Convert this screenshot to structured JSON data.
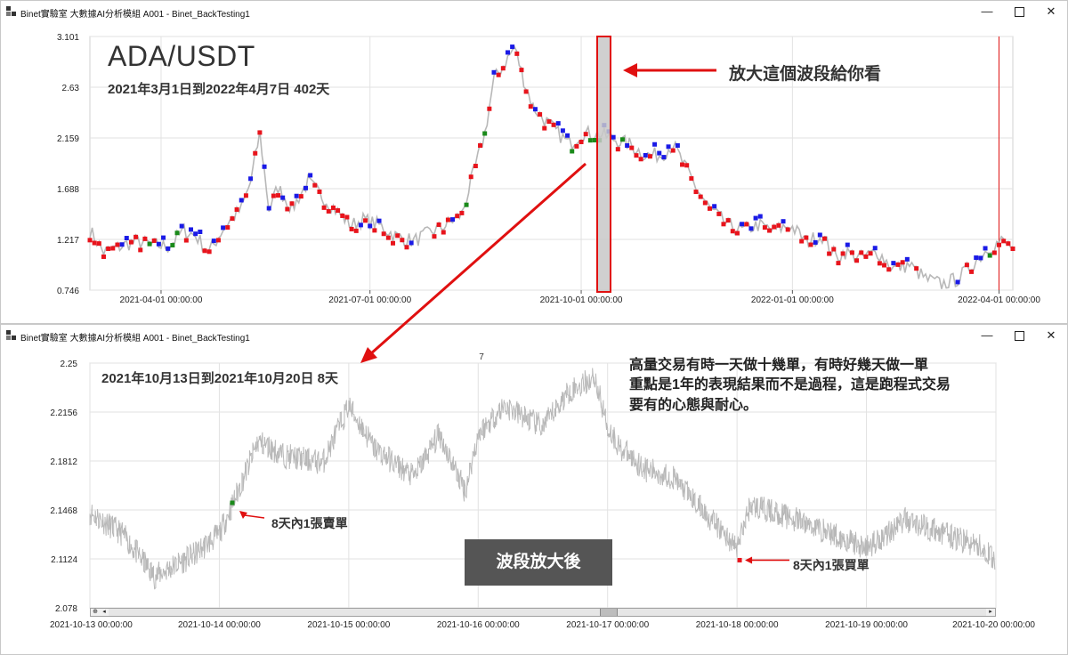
{
  "top_window": {
    "title": "Binet實驗室  大數據AI分析模組 A001 - Binet_BackTesting1",
    "controls": {
      "minimize": "—",
      "close": "✕"
    }
  },
  "bottom_window": {
    "title": "Binet實驗室  大數據AI分析模組 A001 - Binet_BackTesting1",
    "controls": {
      "minimize": "—",
      "close": "✕"
    }
  },
  "annotations": {
    "pair": "ADA/USDT",
    "top_range": "2021年3月1日到2022年4月7日  402天",
    "zoom_note": "放大這個波段給你看",
    "bottom_range": "2021年10月13日到2021年10月20日  8天",
    "note_lines": [
      "高量交易有時一天做十幾單，有時好幾天做一單",
      "重點是1年的表現結果而不是過程，這是跑程式交易",
      "要有的心態與耐心。"
    ],
    "sell_label": "8天內1張賣單",
    "buy_label": "8天內1張買單",
    "zoomed_label": "波段放大後"
  },
  "colors": {
    "price_line": "#b8b8b8",
    "buy_marker": "#e8141c",
    "sell_marker": "#1a1ae6",
    "close_marker": "#1a8a1a",
    "arrow": "#e01010",
    "grid": "#e2e2e2"
  },
  "scrollbar": {
    "left_arrow": "◂",
    "right_arrow": "▸",
    "home_glyph": "⊕"
  },
  "chart_data": [
    {
      "type": "line",
      "title": "",
      "xlabel": "",
      "ylabel": "",
      "y_ticks": [
        "3.101",
        "2.63",
        "2.159",
        "1.688",
        "1.217",
        "0.746"
      ],
      "ylim": [
        0.746,
        3.101
      ],
      "x_ticks": [
        "2021-04-01 00:00:00",
        "2021-07-01 00:00:00",
        "2021-10-01 00:00:00",
        "2022-01-01 00:00:00",
        "2022-04-01 00:00:00"
      ],
      "grid": true,
      "series": [
        {
          "x": [
            "2021-03-01",
            "2021-03-07",
            "2021-03-14",
            "2021-03-21",
            "2021-03-28",
            "2021-04-04",
            "2021-04-11",
            "2021-04-16",
            "2021-04-22",
            "2021-04-29",
            "2021-05-06",
            "2021-05-10",
            "2021-05-14",
            "2021-05-18",
            "2021-05-22",
            "2021-05-28",
            "2021-06-04",
            "2021-06-11",
            "2021-06-18",
            "2021-06-23",
            "2021-06-28",
            "2021-07-05",
            "2021-07-12",
            "2021-07-20",
            "2021-07-27",
            "2021-08-03",
            "2021-08-10",
            "2021-08-16",
            "2021-08-20",
            "2021-08-24",
            "2021-08-30",
            "2021-09-02",
            "2021-09-06",
            "2021-09-10",
            "2021-09-14",
            "2021-09-21",
            "2021-09-26",
            "2021-10-01",
            "2021-10-08",
            "2021-10-15",
            "2021-10-22",
            "2021-10-29",
            "2021-11-05",
            "2021-11-10",
            "2021-11-15",
            "2021-11-20",
            "2021-11-26",
            "2021-12-04",
            "2021-12-10",
            "2021-12-17",
            "2021-12-24",
            "2021-12-31",
            "2022-01-07",
            "2022-01-14",
            "2022-01-20",
            "2022-01-24",
            "2022-01-31",
            "2022-02-07",
            "2022-02-14",
            "2022-02-21",
            "2022-02-28",
            "2022-03-07",
            "2022-03-14",
            "2022-03-21",
            "2022-03-28",
            "2022-04-02",
            "2022-04-07"
          ],
          "y": [
            1.3,
            1.1,
            1.15,
            1.2,
            1.17,
            1.15,
            1.3,
            1.25,
            1.1,
            1.35,
            1.5,
            1.75,
            2.2,
            1.5,
            1.7,
            1.5,
            1.75,
            1.6,
            1.45,
            1.35,
            1.4,
            1.35,
            1.25,
            1.2,
            1.28,
            1.35,
            1.45,
            1.9,
            2.2,
            2.7,
            2.9,
            3.0,
            2.7,
            2.45,
            2.35,
            2.2,
            2.1,
            2.2,
            2.2,
            2.15,
            2.1,
            2.0,
            2.0,
            2.1,
            1.9,
            1.7,
            1.5,
            1.35,
            1.3,
            1.35,
            1.3,
            1.35,
            1.2,
            1.25,
            1.05,
            1.1,
            1.05,
            1.1,
            0.95,
            0.98,
            0.85,
            0.8,
            0.85,
            1.0,
            1.15,
            1.2,
            1.15
          ]
        }
      ]
    },
    {
      "type": "line",
      "title": "",
      "xlabel": "",
      "ylabel": "",
      "y_ticks": [
        "2.25",
        "2.2156",
        "2.1812",
        "2.1468",
        "2.1124",
        "2.078"
      ],
      "ylim": [
        2.078,
        2.25
      ],
      "x_ticks": [
        "2021-10-13 00:00:00",
        "2021-10-14 00:00:00",
        "2021-10-15 00:00:00",
        "2021-10-16 00:00:00",
        "2021-10-17 00:00:00",
        "2021-10-18 00:00:00",
        "2021-10-19 00:00:00",
        "2021-10-20 00:00:00"
      ],
      "grid": true,
      "top_label": "7",
      "series": [
        {
          "x": [
            0,
            0.25,
            0.5,
            0.8,
            1.0,
            1.1,
            1.3,
            1.5,
            1.8,
            2.0,
            2.2,
            2.5,
            2.7,
            2.9,
            3.0,
            3.2,
            3.5,
            3.7,
            3.9,
            4.0,
            4.1,
            4.3,
            4.5,
            4.7,
            5.0,
            5.1,
            5.3,
            5.6,
            6.0,
            6.3,
            6.6,
            6.9,
            7.0
          ],
          "y": [
            2.145,
            2.13,
            2.1,
            2.115,
            2.13,
            2.15,
            2.195,
            2.185,
            2.18,
            2.22,
            2.19,
            2.17,
            2.2,
            2.16,
            2.2,
            2.22,
            2.205,
            2.23,
            2.24,
            2.205,
            2.19,
            2.175,
            2.17,
            2.15,
            2.12,
            2.15,
            2.145,
            2.135,
            2.12,
            2.14,
            2.13,
            2.12,
            2.11
          ]
        }
      ],
      "markers": [
        {
          "name": "sell",
          "x": 1.1,
          "y": 2.1518
        },
        {
          "name": "buy",
          "x": 5.02,
          "y": 2.1115
        }
      ]
    }
  ]
}
